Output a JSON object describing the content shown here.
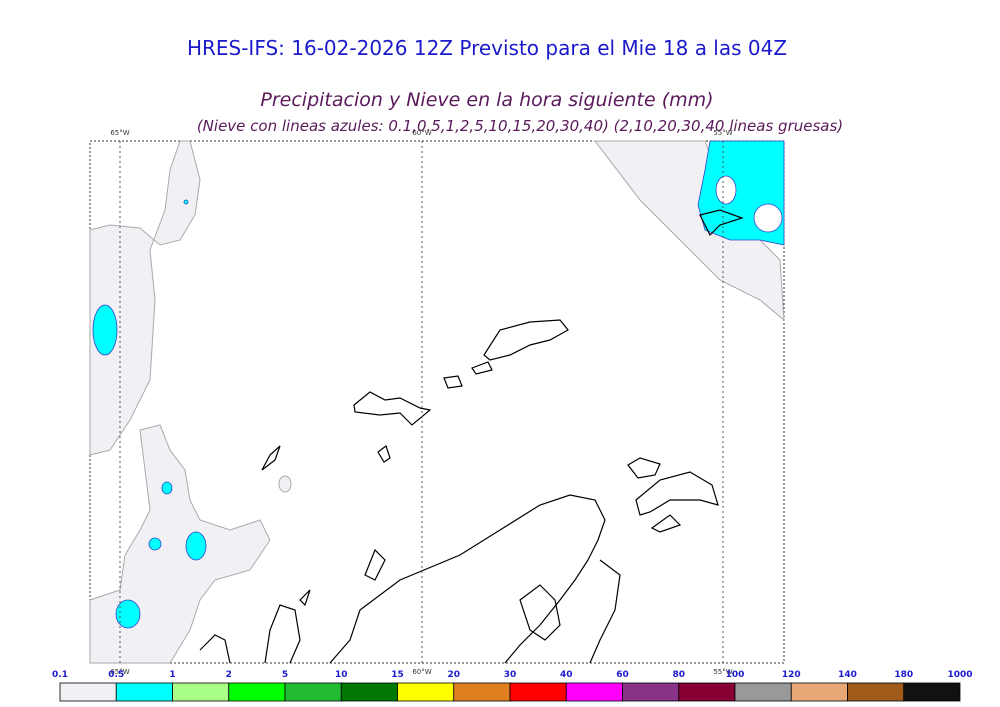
{
  "header": {
    "title": "HRES-IFS: 16-02-2026 12Z Previsto para el Mie 18 a las 04Z",
    "subtitle": "Precipitacion y Nieve en la hora siguiente (mm)",
    "note": "(Nieve con lineas azules: 0.1,0.5,1,2,5,10,15,20,30,40)  (2,10,20,30,40 lineas gruesas)"
  },
  "map": {
    "longitudes": [
      "65°W",
      "60°W",
      "55°W"
    ]
  },
  "legend": {
    "labels": [
      "0.1",
      "0.5",
      "1",
      "2",
      "5",
      "10",
      "15",
      "20",
      "30",
      "40",
      "60",
      "80",
      "100",
      "120",
      "140",
      "180",
      "1000"
    ],
    "colors": [
      "#f0f0f5",
      "#00ffff",
      "#aaff88",
      "#00ff00",
      "#22bb33",
      "#007700",
      "#ffff00",
      "#e08020",
      "#ff0000",
      "#ff00ff",
      "#883388",
      "#880033",
      "#999999",
      "#e8a878",
      "#a05a1a",
      "#111111"
    ]
  }
}
